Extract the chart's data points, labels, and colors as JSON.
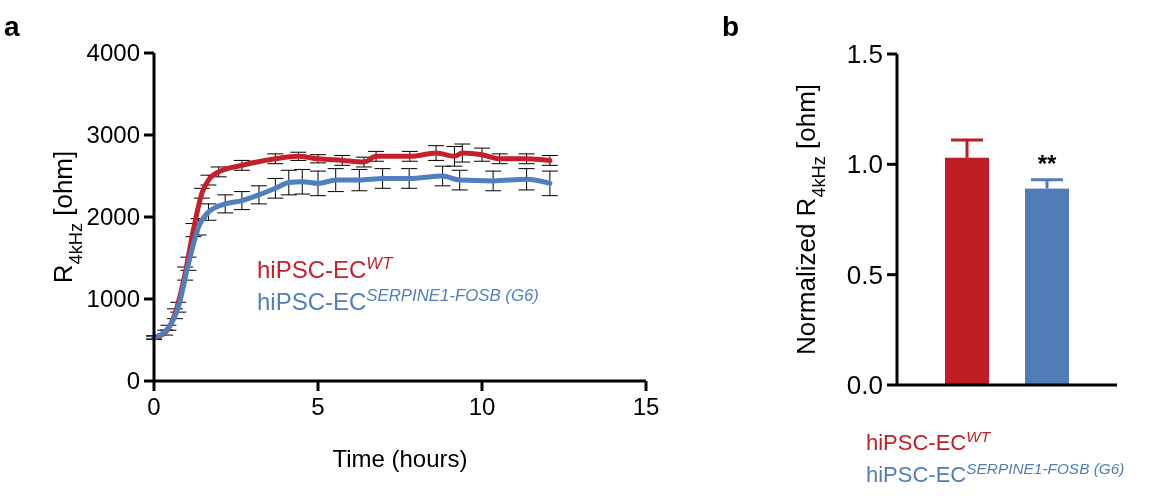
{
  "chart_data": [
    {
      "type": "line",
      "title": "a",
      "xlabel": "Time (hours)",
      "ylabel": "R$_{4kHz}$ [ohm]",
      "xlim": [
        0,
        15
      ],
      "xticks": [
        0,
        5,
        10,
        15
      ],
      "ylim": [
        0,
        4000
      ],
      "yticks": [
        0,
        1000,
        2000,
        3000,
        4000
      ],
      "legend": "center",
      "series": [
        {
          "name": "hiPSC-EC$^{WT}$",
          "color": "#c8202a",
          "x": [
            0,
            0.34,
            0.64,
            0.95,
            1.2,
            1.46,
            1.66,
            1.97,
            2.68,
            3.7,
            4.4,
            5,
            5.74,
            6.4,
            6.77,
            7.8,
            8.6,
            9.16,
            9.4,
            10,
            10.54,
            11.36,
            12.07
          ],
          "values": [
            530,
            590,
            820,
            1310,
            1840,
            2290,
            2450,
            2550,
            2630,
            2710,
            2740,
            2710,
            2690,
            2670,
            2740,
            2740,
            2780,
            2740,
            2780,
            2760,
            2710,
            2710,
            2690
          ],
          "errors": [
            20,
            30,
            60,
            80,
            80,
            60,
            60,
            60,
            60,
            60,
            50,
            50,
            60,
            60,
            60,
            60,
            90,
            120,
            110,
            80,
            60,
            60,
            60
          ]
        },
        {
          "name": "hiPSC-EC$^{SERPINE1-FOSB (G6)}$",
          "color": "#4f7fbf",
          "x": [
            0,
            0.44,
            0.74,
            1.05,
            1.36,
            1.66,
            2.17,
            2.68,
            3.2,
            3.7,
            4.11,
            4.52,
            5,
            5.54,
            6.26,
            6.97,
            7.78,
            8.8,
            9.32,
            10.34,
            11.36,
            12.07
          ],
          "values": [
            530,
            650,
            900,
            1430,
            1880,
            2060,
            2160,
            2200,
            2270,
            2350,
            2420,
            2430,
            2410,
            2450,
            2450,
            2470,
            2470,
            2500,
            2450,
            2440,
            2460,
            2410
          ],
          "errors": [
            20,
            30,
            60,
            80,
            100,
            100,
            110,
            110,
            110,
            120,
            150,
            150,
            150,
            140,
            130,
            120,
            120,
            120,
            120,
            120,
            130,
            150
          ]
        }
      ]
    },
    {
      "type": "bar",
      "title": "b",
      "ylabel": "Normalized R$_{4kHz}$ [ohm]",
      "categories": [
        null,
        null
      ],
      "ylim": [
        0,
        1.5
      ],
      "yticks": [
        {
          "value": 0,
          "label": "0.0"
        },
        {
          "value": 0.5,
          "label": "0.5"
        },
        {
          "value": 1,
          "label": "1.0"
        },
        {
          "value": 1.5,
          "label": "1.5"
        }
      ],
      "legend": "bottom",
      "annotations": [
        "**"
      ],
      "series": [
        {
          "name": "hiPSC-EC$^{WT}$",
          "color": "#be1e24",
          "values": [
            1.03,
            null
          ],
          "errors": [
            [
              1.03,
              1.11
            ],
            null
          ]
        },
        {
          "name": "hiPSC-EC$^{SERPINE1-FOSB (G6)}$",
          "color": "#507db8",
          "values": [
            null,
            0.89
          ],
          "errors": [
            null,
            [
              0.89,
              0.93
            ]
          ]
        }
      ]
    }
  ]
}
